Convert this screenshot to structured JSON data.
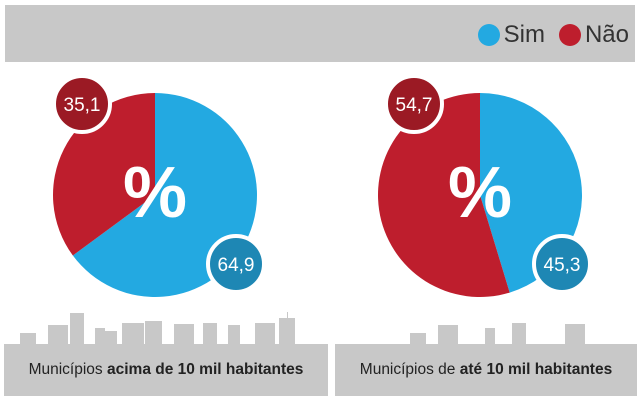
{
  "legend": [
    {
      "label": "Sim",
      "color": "#23a9e1"
    },
    {
      "label": "Não",
      "color": "#be1e2d"
    }
  ],
  "center_symbol": "%",
  "chart_data": [
    {
      "type": "pie",
      "title": "Municípios acima de 10 mil habitantes",
      "title_normal": "Municípios ",
      "title_bold": "acima de 10 mil habitantes",
      "slices": [
        {
          "label": "Sim",
          "value": 64.9,
          "display": "64,9",
          "color": "#23a9e1",
          "badge": "#1e87b4"
        },
        {
          "label": "Não",
          "value": 35.1,
          "display": "35,1",
          "color": "#be1e2d",
          "badge": "#9b1a24"
        }
      ]
    },
    {
      "type": "pie",
      "title": "Municípios de até 10 mil habitantes",
      "title_normal": "Municípios de ",
      "title_bold": "até 10 mil habitantes",
      "slices": [
        {
          "label": "Sim",
          "value": 45.3,
          "display": "45,3",
          "color": "#23a9e1",
          "badge": "#1e87b4"
        },
        {
          "label": "Não",
          "value": 54.7,
          "display": "54,7",
          "color": "#be1e2d",
          "badge": "#9b1a24"
        }
      ]
    }
  ]
}
